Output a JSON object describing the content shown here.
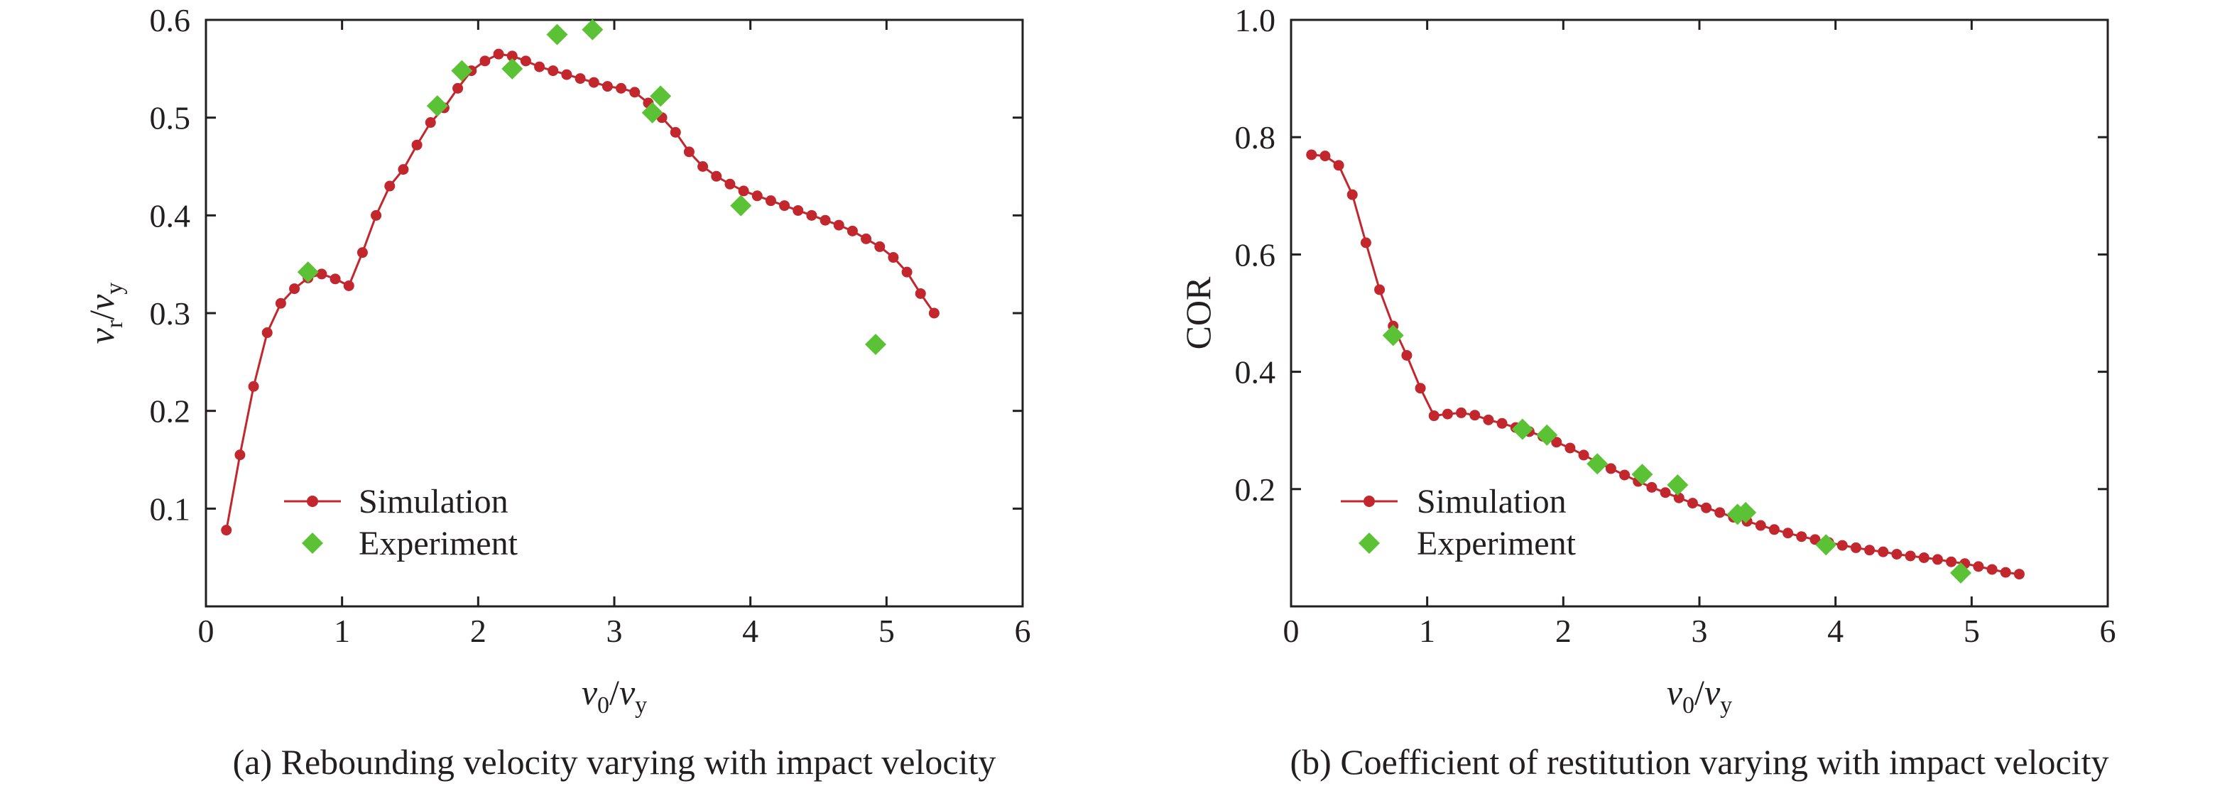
{
  "colors": {
    "simulation": "#c1272d",
    "experiment": "#5bc236",
    "axis": "#231f20",
    "background": "#ffffff"
  },
  "chart_data": [
    {
      "type": "scatter",
      "caption": "(a) Rebounding velocity varying with impact velocity",
      "xlabel": {
        "main": "v",
        "sub1": "0",
        "sep": "/",
        "main2": "v",
        "sub2": "y"
      },
      "ylabel": {
        "main": "v",
        "sub1": "r",
        "sep": "/",
        "main2": "v",
        "sub2": "y"
      },
      "xlim": [
        0,
        6
      ],
      "ylim": [
        0,
        0.6
      ],
      "xticks": [
        "0",
        "1",
        "2",
        "3",
        "4",
        "5",
        "6"
      ],
      "yticks": [
        "0.1",
        "0.2",
        "0.3",
        "0.4",
        "0.5",
        "0.6"
      ],
      "ytick_values": [
        0.1,
        0.2,
        0.3,
        0.4,
        0.5,
        0.6
      ],
      "legend_position": "bottom-left",
      "series": [
        {
          "name": "Simulation",
          "style": "line-marker",
          "x": [
            0.15,
            0.25,
            0.35,
            0.45,
            0.55,
            0.65,
            0.75,
            0.85,
            0.95,
            1.05,
            1.15,
            1.25,
            1.35,
            1.45,
            1.55,
            1.65,
            1.75,
            1.85,
            1.95,
            2.05,
            2.15,
            2.25,
            2.35,
            2.45,
            2.55,
            2.65,
            2.75,
            2.85,
            2.95,
            3.05,
            3.15,
            3.25,
            3.35,
            3.45,
            3.55,
            3.65,
            3.75,
            3.85,
            3.95,
            4.05,
            4.15,
            4.25,
            4.35,
            4.45,
            4.55,
            4.65,
            4.75,
            4.85,
            4.95,
            5.05,
            5.15,
            5.25,
            5.35
          ],
          "y": [
            0.078,
            0.155,
            0.225,
            0.28,
            0.31,
            0.325,
            0.336,
            0.34,
            0.335,
            0.328,
            0.362,
            0.4,
            0.43,
            0.447,
            0.472,
            0.495,
            0.51,
            0.53,
            0.548,
            0.558,
            0.565,
            0.563,
            0.558,
            0.552,
            0.548,
            0.544,
            0.54,
            0.536,
            0.532,
            0.53,
            0.526,
            0.515,
            0.5,
            0.485,
            0.465,
            0.45,
            0.44,
            0.432,
            0.425,
            0.42,
            0.415,
            0.41,
            0.405,
            0.4,
            0.395,
            0.39,
            0.384,
            0.376,
            0.368,
            0.357,
            0.342,
            0.32,
            0.3
          ]
        },
        {
          "name": "Experiment",
          "style": "diamond",
          "x": [
            0.75,
            1.7,
            1.88,
            2.25,
            2.58,
            2.84,
            3.28,
            3.34,
            3.93,
            4.92
          ],
          "y": [
            0.342,
            0.512,
            0.548,
            0.55,
            0.585,
            0.59,
            0.505,
            0.522,
            0.41,
            0.268
          ]
        }
      ]
    },
    {
      "type": "scatter",
      "caption": "(b) Coefficient of restitution varying with impact velocity",
      "xlabel": {
        "main": "v",
        "sub1": "0",
        "sep": "/",
        "main2": "v",
        "sub2": "y"
      },
      "ylabel": {
        "text": "COR"
      },
      "xlim": [
        0,
        6
      ],
      "ylim": [
        0,
        1.0
      ],
      "xticks": [
        "0",
        "1",
        "2",
        "3",
        "4",
        "5",
        "6"
      ],
      "yticks": [
        "0.2",
        "0.4",
        "0.6",
        "0.8",
        "1.0"
      ],
      "ytick_values": [
        0.2,
        0.4,
        0.6,
        0.8,
        1.0
      ],
      "legend_position": "bottom-left",
      "series": [
        {
          "name": "Simulation",
          "style": "line-marker",
          "x": [
            0.15,
            0.25,
            0.35,
            0.45,
            0.55,
            0.65,
            0.75,
            0.85,
            0.95,
            1.05,
            1.15,
            1.25,
            1.35,
            1.45,
            1.55,
            1.65,
            1.75,
            1.85,
            1.95,
            2.05,
            2.15,
            2.25,
            2.35,
            2.45,
            2.55,
            2.65,
            2.75,
            2.85,
            2.95,
            3.05,
            3.15,
            3.25,
            3.35,
            3.45,
            3.55,
            3.65,
            3.75,
            3.85,
            3.95,
            4.05,
            4.15,
            4.25,
            4.35,
            4.45,
            4.55,
            4.65,
            4.75,
            4.85,
            4.95,
            5.05,
            5.15,
            5.25,
            5.35
          ],
          "y": [
            0.77,
            0.768,
            0.752,
            0.702,
            0.62,
            0.54,
            0.478,
            0.428,
            0.372,
            0.325,
            0.328,
            0.33,
            0.326,
            0.318,
            0.312,
            0.305,
            0.298,
            0.29,
            0.28,
            0.27,
            0.258,
            0.246,
            0.235,
            0.224,
            0.213,
            0.203,
            0.194,
            0.185,
            0.176,
            0.168,
            0.16,
            0.152,
            0.145,
            0.138,
            0.131,
            0.125,
            0.119,
            0.114,
            0.109,
            0.104,
            0.1,
            0.096,
            0.093,
            0.089,
            0.086,
            0.083,
            0.08,
            0.076,
            0.073,
            0.068,
            0.063,
            0.058,
            0.055
          ]
        },
        {
          "name": "Experiment",
          "style": "diamond",
          "x": [
            0.75,
            1.7,
            1.88,
            2.25,
            2.58,
            2.84,
            3.28,
            3.34,
            3.93,
            4.92
          ],
          "y": [
            0.462,
            0.302,
            0.292,
            0.243,
            0.225,
            0.207,
            0.157,
            0.16,
            0.105,
            0.057
          ]
        }
      ]
    }
  ]
}
